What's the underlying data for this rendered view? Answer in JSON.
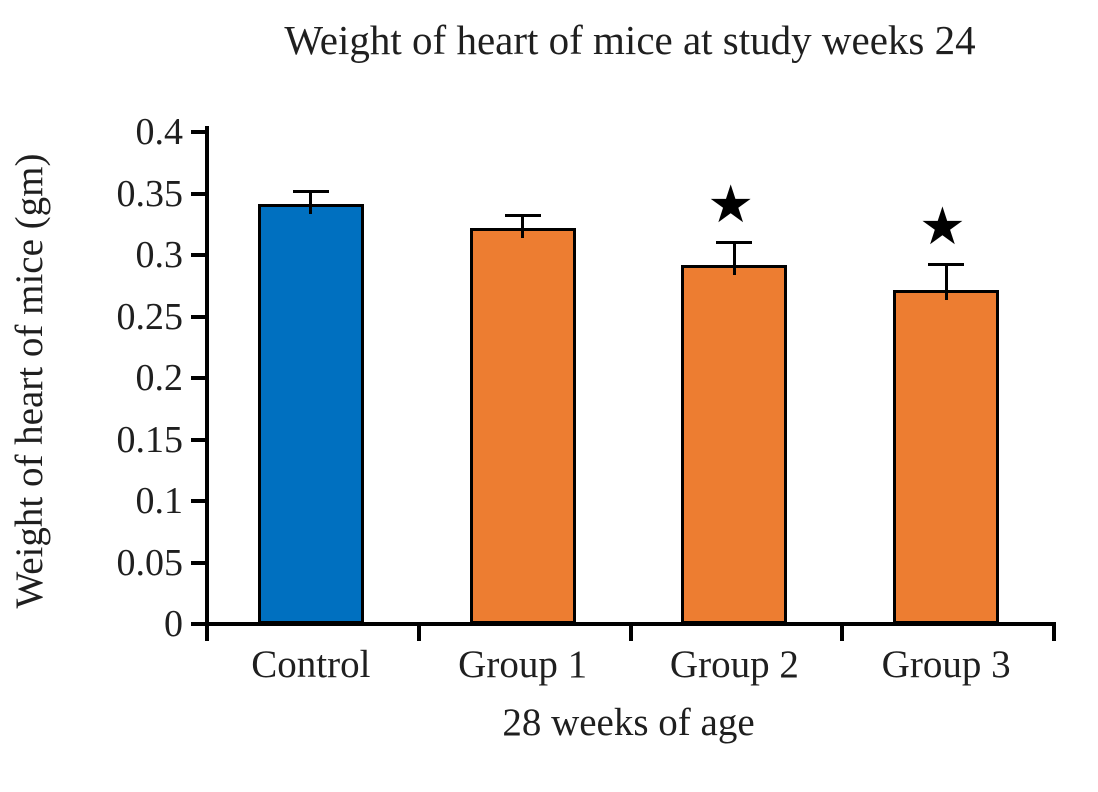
{
  "chart_data": {
    "type": "bar",
    "title": "Weight of heart of mice at study weeks 24",
    "xlabel": "28 weeks of age",
    "ylabel": "Weight of heart of mice (gm)",
    "categories": [
      "Control",
      "Group 1",
      "Group 2",
      "Group 3"
    ],
    "values": [
      0.34,
      0.32,
      0.29,
      0.27
    ],
    "errors_plus": [
      0.01,
      0.01,
      0.018,
      0.02
    ],
    "annotations": [
      {
        "category": "Group 2",
        "symbol": "★",
        "meaning": "significance-star"
      },
      {
        "category": "Group 3",
        "symbol": "★",
        "meaning": "significance-star"
      }
    ],
    "bar_colors": [
      "#0070C0",
      "#ED7D31",
      "#ED7D31",
      "#ED7D31"
    ],
    "bar_border_color": "#000000",
    "ylim": [
      0,
      0.4
    ],
    "ytick_step": 0.05,
    "ytick_labels": [
      "0",
      "0.05",
      "0.1",
      "0.15",
      "0.2",
      "0.25",
      "0.3",
      "0.35",
      "0.4"
    ],
    "grid": false,
    "legend": "none",
    "background_color": "#FFFFFF",
    "axis_color": "#000000"
  }
}
